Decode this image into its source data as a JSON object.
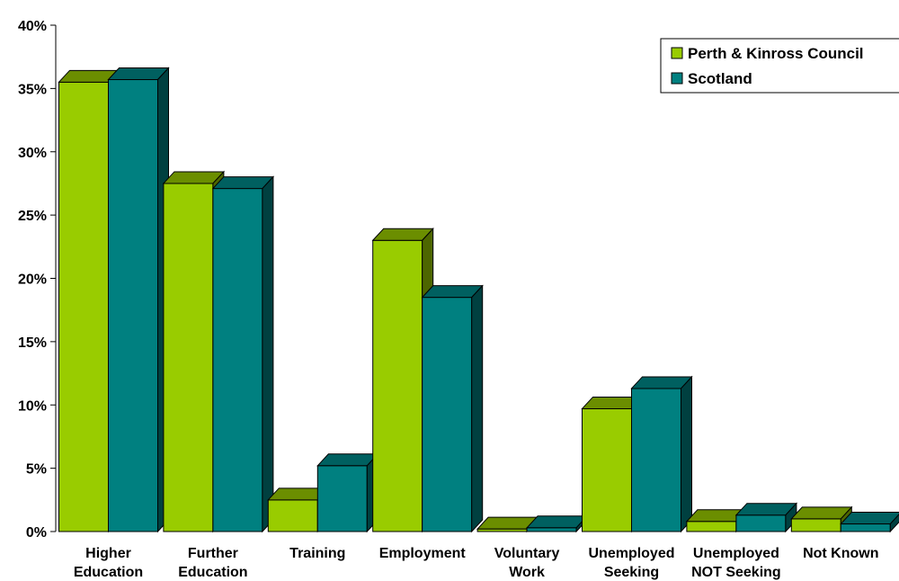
{
  "chart_data": {
    "type": "bar",
    "title": "",
    "xlabel": "",
    "ylabel": "",
    "ylim": [
      0,
      40
    ],
    "y_ticks": [
      "0%",
      "5%",
      "10%",
      "15%",
      "20%",
      "25%",
      "30%",
      "35%",
      "40%"
    ],
    "y_tick_values": [
      0,
      5,
      10,
      15,
      20,
      25,
      30,
      35,
      40
    ],
    "categories": [
      [
        "Higher",
        "Education"
      ],
      [
        "Further",
        "Education"
      ],
      [
        "Training"
      ],
      [
        "Employment"
      ],
      [
        "Voluntary",
        "Work"
      ],
      [
        "Unemployed",
        "Seeking"
      ],
      [
        "Unemployed",
        "NOT Seeking"
      ],
      [
        "Not Known"
      ]
    ],
    "series": [
      {
        "name": "Perth & Kinross Council",
        "values": [
          35.5,
          27.5,
          2.5,
          23.0,
          0.2,
          9.7,
          0.8,
          1.0
        ],
        "color": "#99CC00",
        "top_color": "#6B8E00",
        "side_color": "#4D6600"
      },
      {
        "name": "Scotland",
        "values": [
          35.7,
          27.1,
          5.2,
          18.5,
          0.3,
          11.3,
          1.3,
          0.6
        ],
        "color": "#008080",
        "top_color": "#006060",
        "side_color": "#004040"
      }
    ],
    "legend_position": "top-right",
    "grid": false,
    "style": "3d-clustered-column"
  }
}
